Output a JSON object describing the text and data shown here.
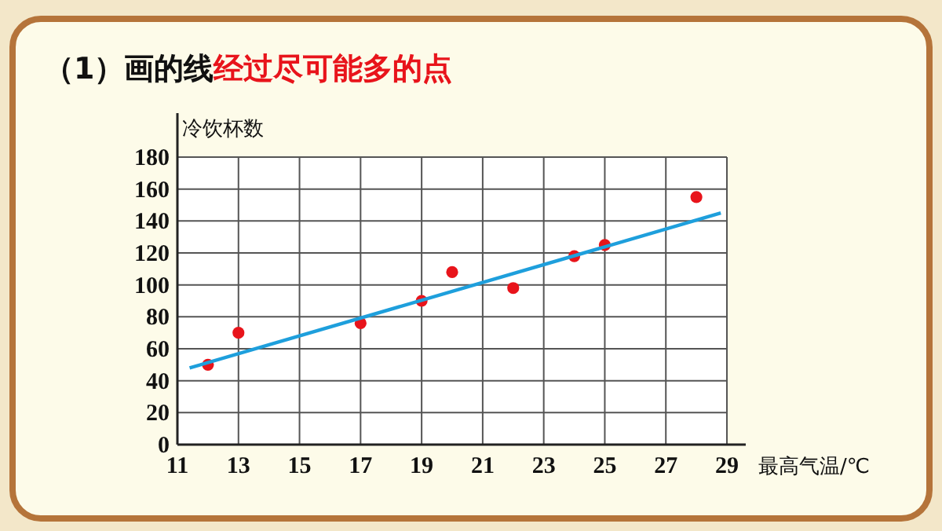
{
  "chart_data": {
    "type": "scatter",
    "title": "（1）画的线",
    "subtitle": "经过尽可能多的点",
    "xlabel": "最高气温/℃",
    "ylabel": "冷饮杯数",
    "series": [
      {
        "marker": "circle",
        "color": "#e8141b",
        "x": [
          12,
          13,
          17,
          19,
          20,
          22,
          24,
          25,
          28
        ],
        "values": [
          50,
          70,
          76,
          90,
          108,
          98,
          118,
          125,
          155
        ]
      },
      {
        "type": "line",
        "color": "#1e9fdc",
        "x": [
          11.4,
          28.8
        ],
        "values": [
          48,
          145
        ]
      }
    ],
    "xlim": [
      11,
      29
    ],
    "xticks": [
      11,
      13,
      15,
      17,
      19,
      21,
      23,
      25,
      27,
      29
    ],
    "ylim": [
      0,
      180
    ],
    "yticks": [
      0,
      20,
      40,
      60,
      80,
      100,
      120,
      140,
      160,
      180
    ],
    "grid": true
  }
}
